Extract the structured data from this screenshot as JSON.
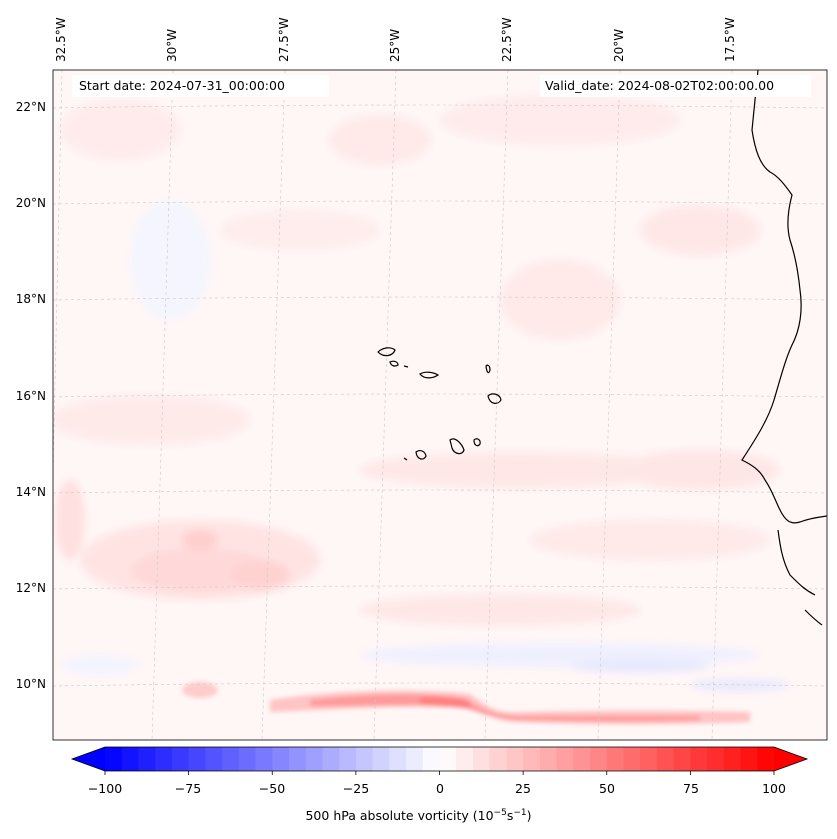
{
  "map": {
    "lon_labels": [
      "32.5°W",
      "30°W",
      "27.5°W",
      "25°W",
      "22.5°W",
      "20°W",
      "17.5°W"
    ],
    "lat_labels": [
      "22°N",
      "20°N",
      "18°N",
      "16°N",
      "14°N",
      "12°N",
      "10°N"
    ],
    "start_date": "Start date: 2024-07-31_00:00:00",
    "valid_date": "Valid_date: 2024-08-02T02:00:00.00",
    "gridlines": true,
    "field": "500 hPa absolute vorticity",
    "colormap": "bwr",
    "coastline_color": "#000000"
  },
  "colorbar": {
    "ticks": [
      "−100",
      "−75",
      "−50",
      "−25",
      "0",
      "25",
      "50",
      "75",
      "100"
    ],
    "range": [
      -100,
      100
    ],
    "extend": "both",
    "label_main": "500 hPa absolute vorticity (10",
    "label_exp1": "−5",
    "label_mid": "s",
    "label_exp2": "−1",
    "label_end": ")"
  }
}
